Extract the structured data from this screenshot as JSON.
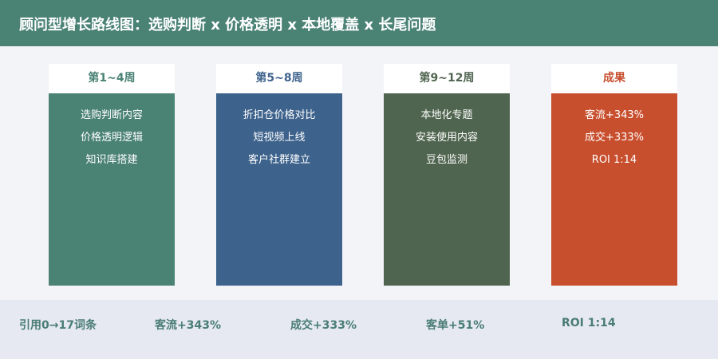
{
  "header": {
    "title": "顾问型增长路线图：选购判断 x 价格透明 x 本地覆盖 x 长尾问题"
  },
  "columns": [
    {
      "label": "第1~4周",
      "items": [
        "选购判断内容",
        "价格透明逻辑",
        "知识库搭建"
      ]
    },
    {
      "label": "第5~8周",
      "items": [
        "折扣仓价格对比",
        "短视频上线",
        "客户社群建立"
      ]
    },
    {
      "label": "第9~12周",
      "items": [
        "本地化专题",
        "安装使用内容",
        "豆包监测"
      ]
    },
    {
      "label": "成果",
      "items": [
        "客流+343%",
        "成交+333%",
        "ROI 1:14"
      ]
    }
  ],
  "footer": {
    "items": [
      "引用0→17词条",
      "客流+343%",
      "成交+333%",
      "客单+51%",
      "ROI 1:14"
    ]
  }
}
